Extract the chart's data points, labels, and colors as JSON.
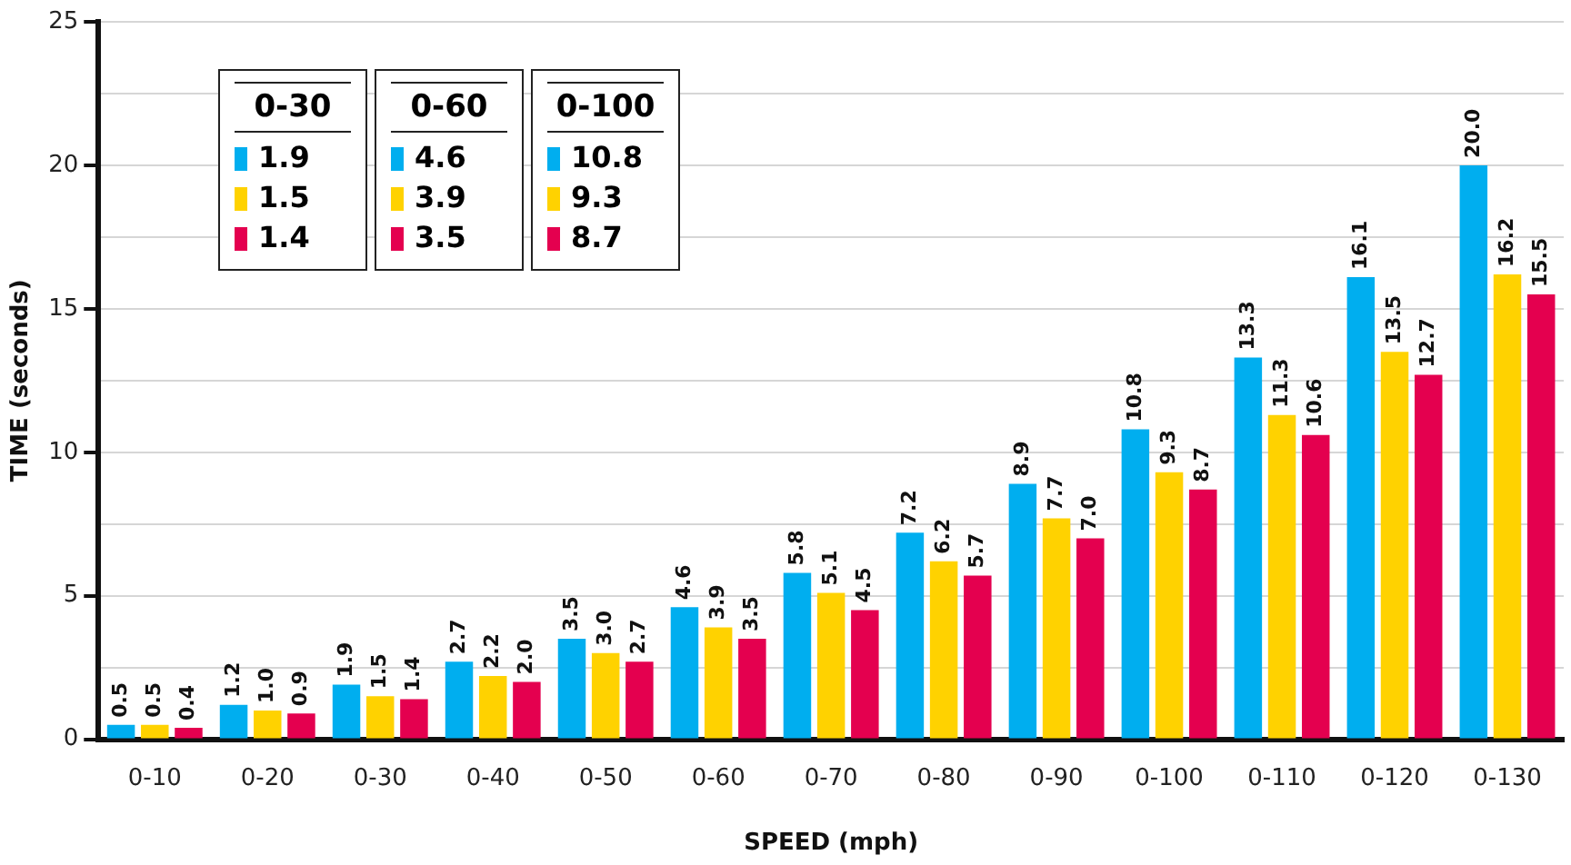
{
  "chart_data": {
    "type": "bar",
    "xlabel": "SPEED (mph)",
    "ylabel": "TIME (seconds)",
    "categories": [
      "0-10",
      "0-20",
      "0-30",
      "0-40",
      "0-50",
      "0-60",
      "0-70",
      "0-80",
      "0-90",
      "0-100",
      "0-110",
      "0-120",
      "0-130"
    ],
    "series": [
      {
        "color": "#00aeef",
        "values": [
          0.5,
          1.2,
          1.9,
          2.7,
          3.5,
          4.6,
          5.8,
          7.2,
          8.9,
          10.8,
          13.3,
          16.1,
          20.0
        ],
        "value_labels": [
          "0.5",
          "1.2",
          "1.9",
          "2.7",
          "3.5",
          "4.6",
          "5.8",
          "7.2",
          "8.9",
          "10.8",
          "13.3",
          "16.1",
          "20.0"
        ]
      },
      {
        "color": "#ffd200",
        "values": [
          0.5,
          1.0,
          1.5,
          2.2,
          3.0,
          3.9,
          5.1,
          6.2,
          7.7,
          9.3,
          11.3,
          13.5,
          16.2
        ],
        "value_labels": [
          "0.5",
          "1.0",
          "1.5",
          "2.2",
          "3.0",
          "3.9",
          "5.1",
          "6.2",
          "7.7",
          "9.3",
          "11.3",
          "13.5",
          "16.2"
        ]
      },
      {
        "color": "#e4004f",
        "values": [
          0.4,
          0.9,
          1.4,
          2.0,
          2.7,
          3.5,
          4.5,
          5.7,
          7.0,
          8.7,
          10.6,
          12.7,
          15.5
        ],
        "value_labels": [
          "0.4",
          "0.9",
          "1.4",
          "2.0",
          "2.7",
          "3.5",
          "4.5",
          "5.7",
          "7.0",
          "8.7",
          "10.6",
          "12.7",
          "15.5"
        ]
      }
    ],
    "ylim": [
      0,
      25
    ],
    "yticks": [
      0,
      {
        "value": 2.5,
        "label": null
      },
      5,
      {
        "value": 7.5,
        "label": null
      },
      10,
      {
        "value": 12.5,
        "label": null
      },
      15,
      {
        "value": 17.5,
        "label": null
      },
      20,
      {
        "value": 22.5,
        "label": null
      },
      25
    ],
    "grid": "y",
    "legend": false,
    "annotations": [
      "0-30",
      "1.9",
      "1.5",
      "1.4",
      "0-60",
      "4.6",
      "3.9",
      "3.5",
      "0-100",
      "10.8",
      "9.3",
      "8.7"
    ]
  }
}
